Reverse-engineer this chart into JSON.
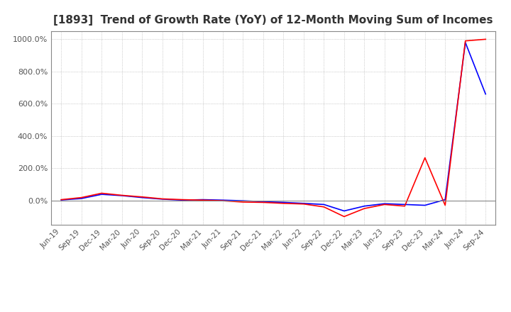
{
  "title": "[1893]  Trend of Growth Rate (YoY) of 12-Month Moving Sum of Incomes",
  "ylim": [
    -150,
    1050
  ],
  "yticks": [
    0,
    200,
    400,
    600,
    800,
    1000
  ],
  "background_color": "#ffffff",
  "grid_color": "#aaaaaa",
  "ordinary_color": "#0000ff",
  "net_color": "#ff0000",
  "x_labels": [
    "Jun-19",
    "Sep-19",
    "Dec-19",
    "Mar-20",
    "Jun-20",
    "Sep-20",
    "Dec-20",
    "Mar-21",
    "Jun-21",
    "Sep-21",
    "Dec-21",
    "Mar-22",
    "Jun-22",
    "Sep-22",
    "Dec-22",
    "Mar-23",
    "Jun-23",
    "Sep-23",
    "Dec-23",
    "Mar-24",
    "Jun-24",
    "Sep-24"
  ],
  "ordinary_income_growth": [
    3.0,
    12.0,
    38.0,
    30.0,
    18.0,
    8.0,
    2.0,
    5.0,
    2.0,
    -2.0,
    -8.0,
    -12.0,
    -18.0,
    -25.0,
    -65.0,
    -35.0,
    -20.0,
    -25.0,
    -30.0,
    5.0,
    980.0,
    660.0
  ],
  "net_income_growth": [
    5.0,
    18.0,
    45.0,
    32.0,
    22.0,
    10.0,
    5.0,
    2.0,
    -2.0,
    -10.0,
    -12.0,
    -18.0,
    -22.0,
    -40.0,
    -100.0,
    -50.0,
    -25.0,
    -35.0,
    265.0,
    -30.0,
    990.0,
    1000.0
  ]
}
